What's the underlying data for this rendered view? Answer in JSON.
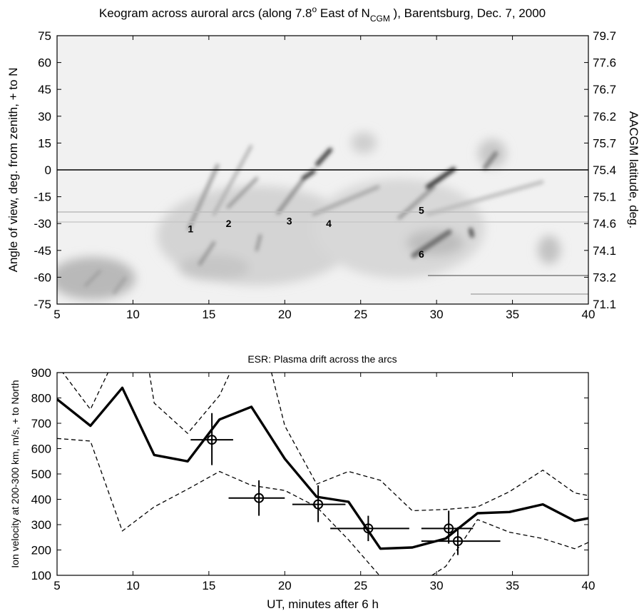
{
  "chart_data": [
    {
      "type": "heatmap",
      "title": {
        "main": "Keogram across auroral arcs (along 7.8",
        "sup": "o",
        "mid": " East of N",
        "sub": "CGM",
        "end": " ), Barentsburg, Dec. 7, 2000"
      },
      "ylabel": "Angle of view, deg. from zenith, + to N",
      "ylabel2": "AACGM latitude, deg.",
      "xlim": [
        5,
        40
      ],
      "ylim": [
        -75,
        75
      ],
      "x_ticks": [
        "5",
        "10",
        "15",
        "20",
        "25",
        "30",
        "35",
        "40"
      ],
      "y_ticks": [
        "75",
        "60",
        "45",
        "30",
        "15",
        "0",
        "-15",
        "-30",
        "-45",
        "-60",
        "-75"
      ],
      "y_ticks_right": [
        "79.7",
        "77.6",
        "76.7",
        "76.2",
        "75.7",
        "75.4",
        "75.1",
        "74.6",
        "74.1",
        "73.2",
        "71.1"
      ],
      "reference_line_y": 0,
      "arc_labels": [
        {
          "text": "1",
          "x": 13.8,
          "y": -33
        },
        {
          "text": "2",
          "x": 16.3,
          "y": -30
        },
        {
          "text": "3",
          "x": 20.3,
          "y": -28.5
        },
        {
          "text": "4",
          "x": 22.9,
          "y": -30
        },
        {
          "text": "5",
          "x": 29.0,
          "y": -22.5
        },
        {
          "text": "6",
          "x": 29.0,
          "y": -47
        }
      ],
      "colormap": "grayscale (dark = bright aurora)"
    },
    {
      "type": "line",
      "title": "ESR: Plasma drift across the arcs",
      "xlabel": "UT, minutes after 6 h",
      "ylabel": "Ion velocity at 200-300 km, m/s, + to North",
      "xlim": [
        5,
        40
      ],
      "ylim": [
        100,
        900
      ],
      "x_ticks": [
        "5",
        "10",
        "15",
        "20",
        "25",
        "30",
        "35",
        "40"
      ],
      "y_ticks": [
        "100",
        "200",
        "300",
        "400",
        "500",
        "600",
        "700",
        "800",
        "900"
      ],
      "series": [
        {
          "style": "solid-thick",
          "x": [
            5,
            7.2,
            9.3,
            11.4,
            13.6,
            15.7,
            17.8,
            20.0,
            22.1,
            24.2,
            26.3,
            28.4,
            30.6,
            32.7,
            34.8,
            37.0,
            39.1,
            40
          ],
          "y": [
            795,
            690,
            840,
            575,
            550,
            715,
            765,
            560,
            410,
            390,
            205,
            210,
            245,
            345,
            350,
            380,
            315,
            325
          ]
        },
        {
          "style": "dashed",
          "x": [
            5,
            7.2,
            9.3,
            11.4,
            13.6,
            15.7,
            17.8,
            20.0,
            22.1,
            24.2,
            26.3,
            28.4,
            30.6,
            32.7,
            34.8,
            37.0,
            39.1,
            40
          ],
          "y": [
            640,
            630,
            275,
            370,
            440,
            510,
            455,
            435,
            370,
            240,
            95,
            50,
            135,
            320,
            270,
            245,
            205,
            230
          ]
        },
        {
          "style": "dashed",
          "x": [
            5,
            7.2,
            8.6,
            11.0,
            11.4,
            13.6,
            15.7,
            17.8,
            19.0,
            20.0,
            22.1,
            24.2,
            26.3,
            28.4,
            30.6,
            32.7,
            34.8,
            37.0,
            39.1,
            40
          ],
          "y": [
            930,
            755,
            930,
            930,
            780,
            660,
            810,
            1080,
            930,
            690,
            460,
            510,
            475,
            355,
            360,
            370,
            430,
            515,
            425,
            415
          ]
        }
      ],
      "points": [
        {
          "x": 15.2,
          "y": 635,
          "xerr": [
            13.8,
            16.6
          ],
          "yerr": [
            535,
            740
          ]
        },
        {
          "x": 18.3,
          "y": 405,
          "xerr": [
            16.3,
            20.0
          ],
          "yerr": [
            335,
            475
          ]
        },
        {
          "x": 22.2,
          "y": 380,
          "xerr": [
            20.5,
            24.0
          ],
          "yerr": [
            310,
            455
          ]
        },
        {
          "x": 25.5,
          "y": 285,
          "xerr": [
            23.0,
            28.2
          ],
          "yerr": [
            235,
            335
          ]
        },
        {
          "x": 30.8,
          "y": 285,
          "xerr": [
            29.0,
            32.4
          ],
          "yerr": [
            225,
            355
          ]
        },
        {
          "x": 31.4,
          "y": 235,
          "xerr": [
            29.0,
            34.2
          ],
          "yerr": [
            180,
            290
          ]
        }
      ]
    }
  ]
}
